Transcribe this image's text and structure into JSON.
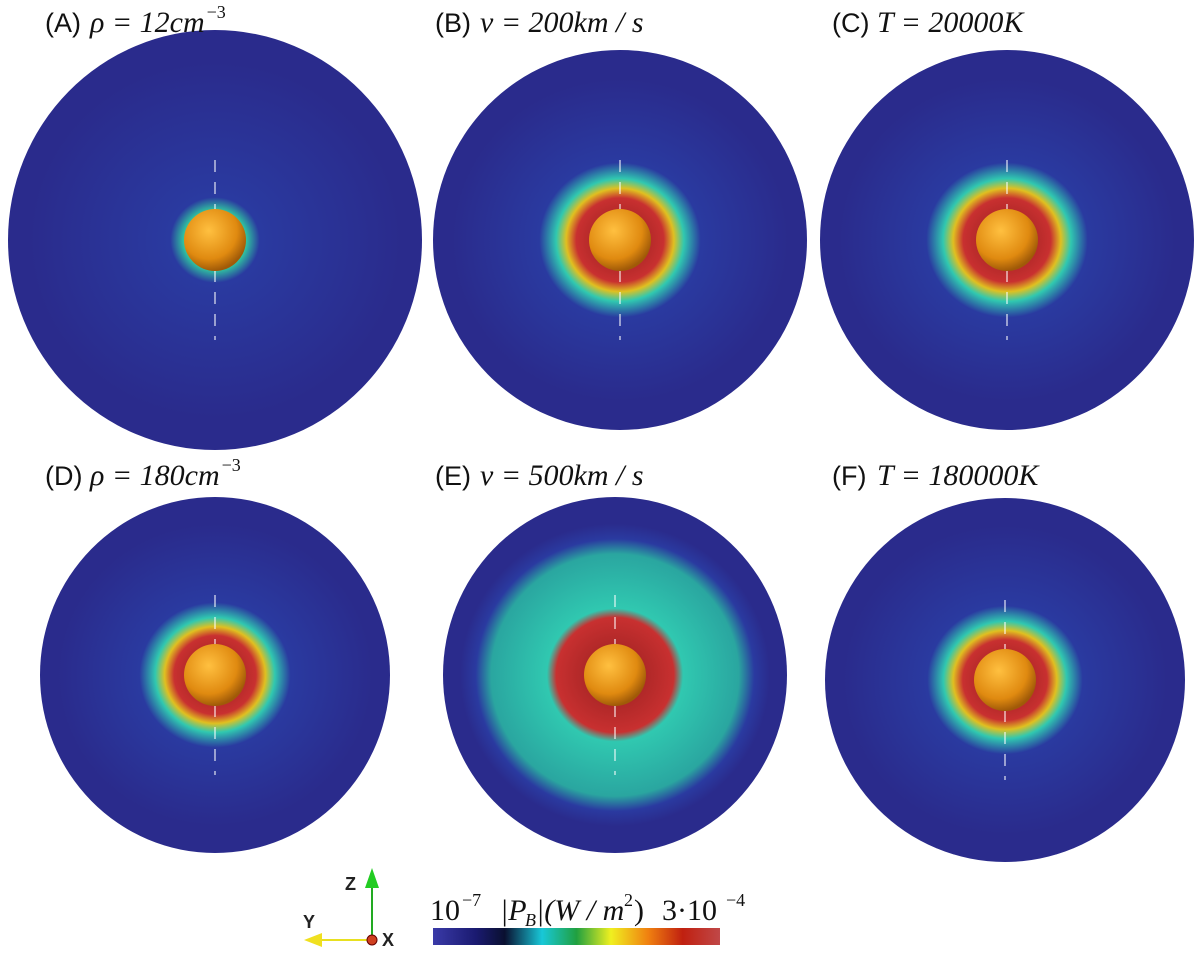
{
  "panels": [
    {
      "label": "(A)",
      "param": "ρ = 12cm",
      "exp": "−3"
    },
    {
      "label": "(B)",
      "param": "v = 200km / s"
    },
    {
      "label": "(C)",
      "param": "T = 20000K"
    },
    {
      "label": "(D)",
      "param": "ρ = 180cm",
      "exp": "−3"
    },
    {
      "label": "(E)",
      "param": "v = 500km / s"
    },
    {
      "label": "(F)",
      "param": "T = 180000K"
    }
  ],
  "axes": {
    "z": "Z",
    "y": "Y",
    "x": "X"
  },
  "colorbar": {
    "min_base": "10",
    "min_exp": "−7",
    "quantity": "|P",
    "quantity_sub": "B",
    "quantity_rest": "|(W / m",
    "quantity_sup": "2",
    "quantity_end": ")",
    "max_base": "3·10",
    "max_exp": "−4"
  }
}
